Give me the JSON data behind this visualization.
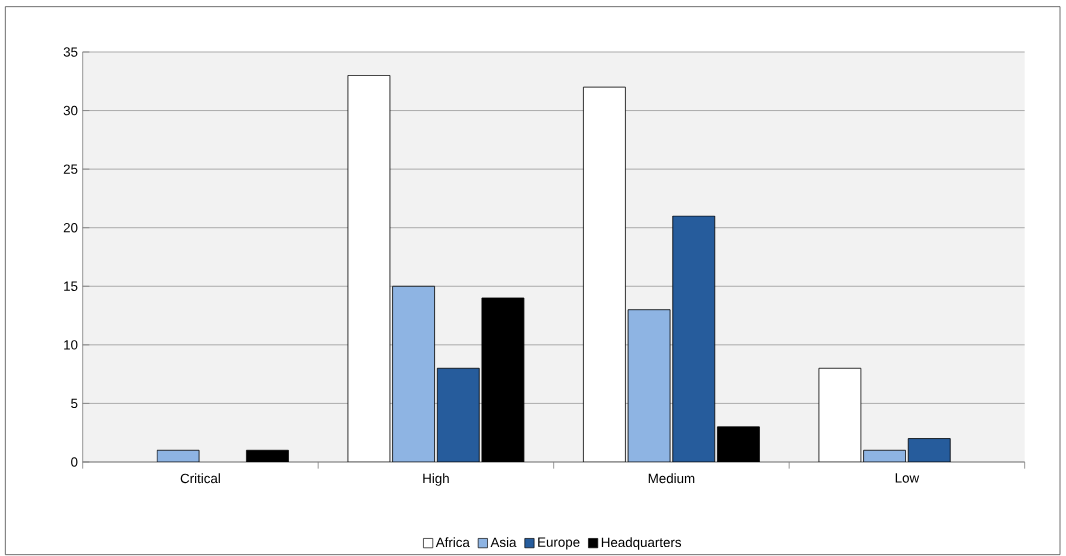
{
  "chart_data": {
    "type": "bar",
    "categories": [
      "Critical",
      "High",
      "Medium",
      "Low"
    ],
    "series": [
      {
        "name": "Africa",
        "color": "#ffffff",
        "values": [
          0,
          33,
          32,
          8
        ]
      },
      {
        "name": "Asia",
        "color": "#8eb4e3",
        "values": [
          1,
          15,
          13,
          1
        ]
      },
      {
        "name": "Europe",
        "color": "#265c9c",
        "values": [
          0,
          8,
          21,
          2
        ]
      },
      {
        "name": "Headquarters",
        "color": "#000000",
        "values": [
          1,
          14,
          3,
          0
        ]
      }
    ],
    "ylim": [
      0,
      35
    ],
    "yticks": [
      0,
      5,
      10,
      15,
      20,
      25,
      30,
      35
    ],
    "grid": "y",
    "legend": "bottom"
  }
}
